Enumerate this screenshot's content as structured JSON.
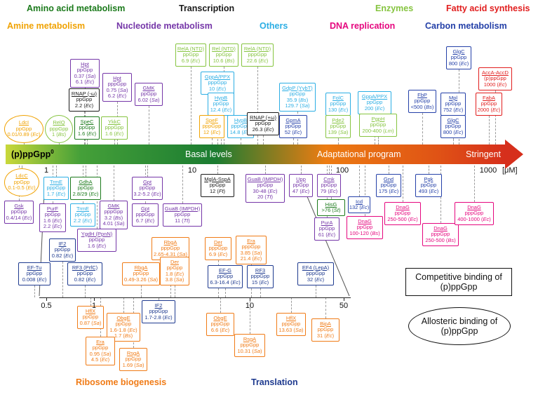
{
  "categories": {
    "amino_acid": {
      "label": "Amino acid metabolism",
      "color": "#1b7a1b"
    },
    "transcription": {
      "label": "Transcription",
      "color": "#1a1a1a"
    },
    "enzymes": {
      "label": "Enzymes",
      "color": "#86c440"
    },
    "fatty_acid": {
      "label": "Fatty acid synthesis",
      "color": "#e11d1d"
    },
    "amine": {
      "label": "Amine metabolism",
      "color": "#f0a202"
    },
    "nucleotide": {
      "label": "Nucleotide metabolism",
      "color": "#7536a8"
    },
    "others": {
      "label": "Others",
      "color": "#2caee4"
    },
    "dna_replication": {
      "label": "DNA replication",
      "color": "#e5067e"
    },
    "carbon": {
      "label": "Carbon metabolism",
      "color": "#2440a8"
    },
    "ribosome": {
      "label": "Ribosome biogenesis",
      "color": "#f07b16"
    },
    "translation": {
      "label": "Translation",
      "color": "#1e3a8f"
    }
  },
  "arrow": {
    "left_label": "(p)ppGpp",
    "left_superscript": "0",
    "zone_basal": "Basal levels",
    "zone_adaptational": "Adaptational program",
    "zone_stringent": "Stringent",
    "gradient": [
      [
        "#c9d83a",
        "0%"
      ],
      [
        "#45a039",
        "15%"
      ],
      [
        "#1b7c31",
        "42%"
      ],
      [
        "#ec7c12",
        "64%"
      ],
      [
        "#e05415",
        "86%"
      ],
      [
        "#d62f1c",
        "100%"
      ]
    ]
  },
  "main_axis": {
    "ticks": [
      "1",
      "10",
      "100",
      "1000"
    ],
    "unit": "[μM]"
  },
  "lower_axis": {
    "ticks": [
      "0.5",
      "1",
      "10",
      "50"
    ]
  },
  "binding_legend": {
    "competitive": "Competitive binding of (p)ppGpp",
    "allosteric": "Allosteric binding of (p)ppGpp"
  },
  "targets": [
    {
      "id": "ldcI",
      "category": "amine",
      "binding": "allosteric",
      "lines": [
        "LdcI",
        "ppGpp",
        "0.01/0.89 (Ec)"
      ]
    },
    {
      "id": "relQ",
      "category": "enzymes",
      "binding": "allosteric",
      "lines": [
        "RelQ",
        "pppGpp",
        "1 (Bs)"
      ]
    },
    {
      "id": "speC",
      "category": "amino_acid",
      "binding": "competitive",
      "lines": [
        "SpeC",
        "ppGpp",
        "1.6 (Ec)"
      ]
    },
    {
      "id": "ykkC",
      "category": "enzymes",
      "binding": "competitive",
      "lines": [
        "YkkC",
        "pppGpp",
        "1.6 (Ec)"
      ]
    },
    {
      "id": "hpt1",
      "category": "nucleotide",
      "binding": "competitive",
      "lines": [
        "Hpt",
        "ppGpp",
        "0.37 (Sa)",
        "6.1 (Ec)"
      ]
    },
    {
      "id": "rnapMinus",
      "category": "transcription",
      "binding": "competitive",
      "lines": [
        "RNAP (-ω)",
        "ppGpp",
        "2.2 (Ec)"
      ]
    },
    {
      "id": "hpt2",
      "category": "nucleotide",
      "binding": "competitive",
      "lines": [
        "Hpt",
        "pppGpp",
        "0.75 (Sa)",
        "6.2 (Ec)"
      ]
    },
    {
      "id": "gmkTop",
      "category": "nucleotide",
      "binding": "competitive",
      "lines": [
        "GMK",
        "ppGpp",
        "6.02 (Sa)"
      ]
    },
    {
      "id": "relAntd1",
      "category": "enzymes",
      "binding": "competitive",
      "lines": [
        "RelA (NTD)",
        "ppGpp",
        "6.9 (Ec)"
      ]
    },
    {
      "id": "relNtd",
      "category": "enzymes",
      "binding": "competitive",
      "lines": [
        "Rel (NTD)",
        "ppGpp",
        "10.6 (Bs)"
      ]
    },
    {
      "id": "relAntd2",
      "category": "enzymes",
      "binding": "competitive",
      "lines": [
        "RelA (NTD)",
        "pppGpp",
        "22.6 (Ec)"
      ]
    },
    {
      "id": "gppa1",
      "category": "others",
      "binding": "competitive",
      "lines": [
        "GppA/PPX",
        "pppGpp",
        "10 (Ec)"
      ]
    },
    {
      "id": "hypB1",
      "category": "others",
      "binding": "competitive",
      "lines": [
        "HypB",
        "ppGpp",
        "12.4 (Ec)"
      ]
    },
    {
      "id": "speF",
      "category": "amine",
      "binding": "competitive",
      "lines": [
        "SpeF",
        "pppGpp",
        "12 (Ec)"
      ]
    },
    {
      "id": "hypB2",
      "category": "others",
      "binding": "competitive",
      "lines": [
        "HypB",
        "pppGpp",
        "14.8 (Ec)"
      ]
    },
    {
      "id": "rnapPlus",
      "category": "transcription",
      "binding": "competitive",
      "lines": [
        "RNAP (+ω)",
        "ppGpp",
        "26.3 (Ec)"
      ]
    },
    {
      "id": "gdpP",
      "category": "others",
      "binding": "competitive",
      "lines": [
        "GdpP (YybT)",
        "ppGpp",
        "35.9 (Bs)",
        "129.7 (Sa)"
      ]
    },
    {
      "id": "gpmA",
      "category": "carbon",
      "binding": "competitive",
      "lines": [
        "GpmA",
        "ppGpp",
        "52 (Ec)"
      ]
    },
    {
      "id": "folC",
      "category": "others",
      "binding": "competitive",
      "lines": [
        "FolC",
        "ppGpp",
        "130 (Ec)"
      ]
    },
    {
      "id": "pde2",
      "category": "enzymes",
      "binding": "competitive",
      "lines": [
        "Pde2",
        "ppGpp",
        "139 (Sa)"
      ]
    },
    {
      "id": "gppa2",
      "category": "others",
      "binding": "competitive",
      "lines": [
        "GppA/PPX",
        "ppGpp",
        "200 (Ec)"
      ]
    },
    {
      "id": "pgpH",
      "category": "enzymes",
      "binding": "competitive",
      "lines": [
        "PgpH",
        "ppGpp",
        "200-400 (Lm)"
      ]
    },
    {
      "id": "fbp",
      "category": "carbon",
      "binding": "competitive",
      "lines": [
        "FbP",
        "ppGpp",
        "<500 (Bs)"
      ]
    },
    {
      "id": "mpl",
      "category": "carbon",
      "binding": "competitive",
      "lines": [
        "Mpl",
        "ppGpp",
        "752 (Ec)"
      ]
    },
    {
      "id": "glgC2",
      "category": "carbon",
      "binding": "competitive",
      "lines": [
        "GlgC",
        "ppGpp",
        "800 (Ec)"
      ]
    },
    {
      "id": "glgCTop",
      "category": "carbon",
      "binding": "competitive",
      "lines": [
        "GlgC",
        "ppGpp",
        "800 (Ec)"
      ]
    },
    {
      "id": "accAD",
      "category": "fatty_acid",
      "binding": "competitive",
      "lines": [
        "AccA-AccD",
        "(p)ppGpp",
        "1000 (Ec)"
      ]
    },
    {
      "id": "fabA",
      "category": "fatty_acid",
      "binding": "competitive",
      "lines": [
        "FabA",
        "ppGpp",
        "2000 (Ec)"
      ]
    },
    {
      "id": "ldcC",
      "category": "amine",
      "binding": "allosteric",
      "lines": [
        "LdcC",
        "ppGpp",
        "0.1-0.5 (Ec)"
      ]
    },
    {
      "id": "trmE1",
      "category": "others",
      "binding": "competitive",
      "lines": [
        "TrmE",
        "pppGpp",
        "1.7 (Ec)"
      ]
    },
    {
      "id": "gdhA",
      "category": "amino_acid",
      "binding": "competitive",
      "lines": [
        "GdhA",
        "ppGpp",
        "2.8/29 (Ec)"
      ]
    },
    {
      "id": "gpt1",
      "category": "nucleotide",
      "binding": "competitive",
      "lines": [
        "Gpt",
        "ppGpp",
        "3.2-5.2 (Ec)"
      ]
    },
    {
      "id": "mglA",
      "category": "transcription",
      "binding": "competitive",
      "lines": [
        "MglA-SspA",
        "ppGpp",
        "12 (Ft)"
      ]
    },
    {
      "id": "guaB1",
      "category": "nucleotide",
      "binding": "competitive",
      "lines": [
        "GuaB (IMPDH)",
        "ppGpp",
        "30-48 (Ec)",
        "20 (Tt)"
      ]
    },
    {
      "id": "upp",
      "category": "nucleotide",
      "binding": "competitive",
      "lines": [
        "Upp",
        "ppGpp",
        "47 (Ec)"
      ]
    },
    {
      "id": "cmk",
      "category": "nucleotide",
      "binding": "competitive",
      "lines": [
        "Cmk",
        "ppGpp",
        "79 (Ec)"
      ]
    },
    {
      "id": "gnd",
      "category": "carbon",
      "binding": "competitive",
      "lines": [
        "Gnd",
        "ppGpp",
        "175 (Ec)"
      ]
    },
    {
      "id": "pgk",
      "category": "carbon",
      "binding": "competitive",
      "lines": [
        "Pgk",
        "ppGpp",
        "493 (Ec)"
      ]
    },
    {
      "id": "gsk",
      "category": "nucleotide",
      "binding": "competitive",
      "lines": [
        "Gsk",
        "ppGpp",
        "0.4/14 (Ec)"
      ]
    },
    {
      "id": "purF",
      "category": "nucleotide",
      "binding": "competitive",
      "lines": [
        "PurF",
        "ppGpp",
        "1.6 (Ec)",
        "2.2 (Ec)"
      ]
    },
    {
      "id": "trmE2",
      "category": "others",
      "binding": "competitive",
      "lines": [
        "TrmE",
        "ppGpp",
        "2.2 (Ec)"
      ]
    },
    {
      "id": "gmk2",
      "category": "nucleotide",
      "binding": "competitive",
      "lines": [
        "GMK",
        "pppGpp",
        "3.2 (Bs)",
        "4.01 (Sa)"
      ]
    },
    {
      "id": "gpt2",
      "category": "nucleotide",
      "binding": "competitive",
      "lines": [
        "Gpt",
        "pppGpp",
        "6.7 (Ec)"
      ]
    },
    {
      "id": "guaB2",
      "category": "nucleotide",
      "binding": "competitive",
      "lines": [
        "GuaB (IMPDH)",
        "ppGpp",
        "11 (Tt)"
      ]
    },
    {
      "id": "hisG",
      "category": "amino_acid",
      "binding": "competitive",
      "lines": [
        "HisG",
        ">76 (St)"
      ]
    },
    {
      "id": "icd",
      "category": "carbon",
      "binding": "competitive",
      "lines": [
        "Icd",
        "132 (Ec)"
      ]
    },
    {
      "id": "purA",
      "category": "nucleotide",
      "binding": "competitive",
      "lines": [
        "PurA",
        "ppGpp",
        "61 (Ec)"
      ]
    },
    {
      "id": "ygdH",
      "category": "nucleotide",
      "binding": "competitive",
      "lines": [
        "YgdH (PpnN)",
        "ppGpp",
        "1.6 (Ec)"
      ]
    },
    {
      "id": "dnaGbs1",
      "category": "dna_replication",
      "binding": "competitive",
      "lines": [
        "DnaG",
        "ppGpp",
        "100-120 (Bs)"
      ]
    },
    {
      "id": "dnaGec1",
      "category": "dna_replication",
      "binding": "competitive",
      "lines": [
        "DnaG",
        "ppGpp",
        "250-500 (Ec)"
      ]
    },
    {
      "id": "dnaGbs2",
      "category": "dna_replication",
      "binding": "competitive",
      "lines": [
        "DnaG",
        "pppGpp",
        "250-500 (Bs)"
      ]
    },
    {
      "id": "dnaGec2",
      "category": "dna_replication",
      "binding": "competitive",
      "lines": [
        "DnaG",
        "pppGpp",
        "400-1000 (Ec)"
      ]
    },
    {
      "id": "efTu",
      "category": "translation",
      "binding": "competitive",
      "lines": [
        "EF-Tu",
        "ppGpp",
        "0.008 (Ec)"
      ]
    },
    {
      "id": "if2a",
      "category": "translation",
      "binding": "competitive",
      "lines": [
        "IF2",
        "ppGpp",
        "0.82 (Ec)"
      ]
    },
    {
      "id": "rf3a",
      "category": "translation",
      "binding": "competitive",
      "lines": [
        "RF3 (PrfC)",
        "ppGpp",
        "0.82 (Ec)"
      ]
    },
    {
      "id": "rbgA1",
      "category": "ribosome",
      "binding": "competitive",
      "lines": [
        "RbgA",
        "ppGpp",
        "0.49-3.26 (Sa)"
      ]
    },
    {
      "id": "rbgA2",
      "category": "ribosome",
      "binding": "competitive",
      "lines": [
        "RbgA",
        "pppGpp",
        "2.65-4.31 (Sa)"
      ]
    },
    {
      "id": "der1",
      "category": "ribosome",
      "binding": "competitive",
      "lines": [
        "Der",
        "ppGpp",
        "1.8 (Ec)",
        "3.8 (Sa)"
      ]
    },
    {
      "id": "der2",
      "category": "ribosome",
      "binding": "competitive",
      "lines": [
        "Der",
        "pppGpp",
        "6.9 (Ec)"
      ]
    },
    {
      "id": "era2",
      "category": "ribosome",
      "binding": "competitive",
      "lines": [
        "Era",
        "pppGpp",
        "3.85 (Sa)",
        "21.4 (Ec)"
      ]
    },
    {
      "id": "efG",
      "category": "translation",
      "binding": "competitive",
      "lines": [
        "EF-G",
        "ppGpp",
        "6.3-16.4 (Ec)"
      ]
    },
    {
      "id": "rf3b",
      "category": "translation",
      "binding": "competitive",
      "lines": [
        "RF3",
        "pppGpp",
        "15 (Ec)"
      ]
    },
    {
      "id": "ef4",
      "category": "translation",
      "binding": "competitive",
      "lines": [
        "EF4 (LepA)",
        "pppGpp",
        "32 (Ec)"
      ]
    },
    {
      "id": "if2b",
      "category": "translation",
      "binding": "competitive",
      "lines": [
        "IF2",
        "pppGpp",
        "1.7-2.8 (Ec)"
      ]
    },
    {
      "id": "hflX1",
      "category": "ribosome",
      "binding": "competitive",
      "lines": [
        "HflX",
        "ppGpp",
        "0.87 (Sa)"
      ]
    },
    {
      "id": "obgE1",
      "category": "ribosome",
      "binding": "competitive",
      "lines": [
        "ObgE",
        "ppGpp",
        "1.6-1.8 (Ec)",
        "1.7 (Bs)"
      ]
    },
    {
      "id": "era1",
      "category": "ribosome",
      "binding": "competitive",
      "lines": [
        "Era",
        "ppGpp",
        "0.95 (Sa)",
        "4.5 (Ec)"
      ]
    },
    {
      "id": "rsgA1",
      "category": "ribosome",
      "binding": "competitive",
      "lines": [
        "RsgA",
        "ppGpp",
        "1.69 (Sa)"
      ]
    },
    {
      "id": "obgE2",
      "category": "ribosome",
      "binding": "competitive",
      "lines": [
        "ObgE",
        "pppGpp",
        "6.6 (Ec)"
      ]
    },
    {
      "id": "rsgA2",
      "category": "ribosome",
      "binding": "competitive",
      "lines": [
        "RsgA",
        "pppGpp",
        "10.31 (Sa)"
      ]
    },
    {
      "id": "hflX2",
      "category": "ribosome",
      "binding": "competitive",
      "lines": [
        "HflX",
        "pppGpp",
        "13.63 (Sa)"
      ]
    },
    {
      "id": "bipA",
      "category": "ribosome",
      "binding": "competitive",
      "lines": [
        "BipA",
        "ppGpp",
        "31 (Ec)"
      ]
    }
  ]
}
